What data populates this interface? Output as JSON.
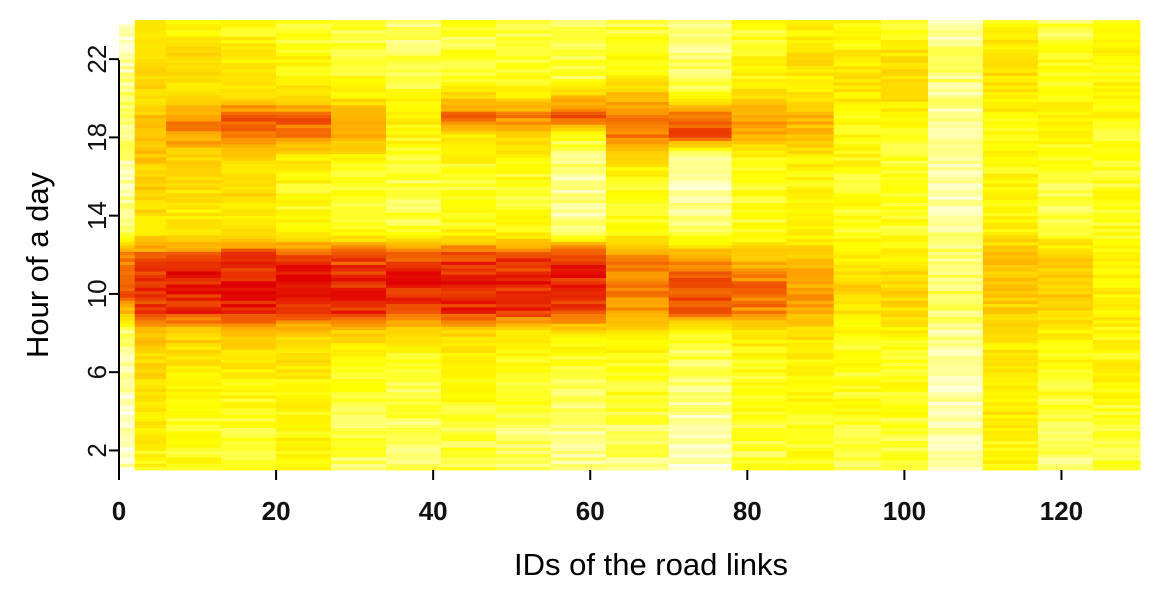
{
  "chart_data": {
    "type": "heatmap",
    "title": "",
    "xlabel": "IDs of the road links",
    "ylabel": "Hour of a day",
    "x_ticks": [
      "0",
      "20",
      "40",
      "60",
      "80",
      "100",
      "120"
    ],
    "y_ticks": [
      "2",
      "6",
      "10",
      "14",
      "18",
      "22"
    ],
    "xlim": [
      0,
      130
    ],
    "ylim": [
      1,
      24
    ],
    "colormap": [
      "#ffffff",
      "#ffff00",
      "#ffaa00",
      "#e00000"
    ],
    "color_scale": "heat (white = low, red = high)",
    "grid": false,
    "legend": "none",
    "link_groups": [
      {
        "x_start": 0,
        "x_end": 2,
        "values": [
          0.1,
          0.05,
          0.1,
          0.05,
          0.1,
          0.1,
          0.15,
          0.2,
          0.6,
          0.85,
          0.8,
          0.7,
          0.2,
          0.15,
          0.15,
          0.1,
          0.15,
          0.2,
          0.2,
          0.2,
          0.15,
          0.1,
          0.1,
          0.05
        ]
      },
      {
        "x_start": 2,
        "x_end": 6,
        "values": [
          0.35,
          0.35,
          0.4,
          0.4,
          0.45,
          0.45,
          0.5,
          0.6,
          0.88,
          0.92,
          0.9,
          0.75,
          0.45,
          0.45,
          0.5,
          0.5,
          0.55,
          0.6,
          0.55,
          0.5,
          0.45,
          0.45,
          0.4,
          0.35
        ]
      },
      {
        "x_start": 6,
        "x_end": 13,
        "values": [
          0.3,
          0.3,
          0.3,
          0.3,
          0.35,
          0.4,
          0.45,
          0.55,
          0.9,
          0.95,
          0.93,
          0.8,
          0.45,
          0.4,
          0.45,
          0.45,
          0.5,
          0.7,
          0.72,
          0.5,
          0.45,
          0.45,
          0.4,
          0.35
        ]
      },
      {
        "x_start": 13,
        "x_end": 20,
        "values": [
          0.3,
          0.3,
          0.3,
          0.3,
          0.35,
          0.4,
          0.45,
          0.55,
          0.92,
          0.96,
          0.95,
          0.85,
          0.45,
          0.4,
          0.45,
          0.45,
          0.5,
          0.82,
          0.85,
          0.5,
          0.4,
          0.4,
          0.35,
          0.3
        ]
      },
      {
        "x_start": 20,
        "x_end": 27,
        "values": [
          0.35,
          0.35,
          0.35,
          0.35,
          0.35,
          0.4,
          0.45,
          0.55,
          0.93,
          0.96,
          0.94,
          0.85,
          0.4,
          0.35,
          0.3,
          0.35,
          0.45,
          0.75,
          0.8,
          0.45,
          0.35,
          0.35,
          0.3,
          0.3
        ]
      },
      {
        "x_start": 27,
        "x_end": 34,
        "values": [
          0.2,
          0.25,
          0.25,
          0.25,
          0.3,
          0.3,
          0.35,
          0.5,
          0.9,
          0.95,
          0.92,
          0.82,
          0.35,
          0.3,
          0.3,
          0.3,
          0.4,
          0.65,
          0.7,
          0.4,
          0.3,
          0.3,
          0.25,
          0.25
        ]
      },
      {
        "x_start": 34,
        "x_end": 41,
        "values": [
          0.2,
          0.2,
          0.2,
          0.25,
          0.25,
          0.3,
          0.35,
          0.45,
          0.9,
          0.94,
          0.92,
          0.82,
          0.3,
          0.25,
          0.25,
          0.25,
          0.3,
          0.35,
          0.4,
          0.3,
          0.25,
          0.25,
          0.2,
          0.2
        ]
      },
      {
        "x_start": 41,
        "x_end": 48,
        "values": [
          0.25,
          0.25,
          0.25,
          0.3,
          0.3,
          0.35,
          0.4,
          0.5,
          0.92,
          0.95,
          0.93,
          0.85,
          0.35,
          0.3,
          0.3,
          0.3,
          0.35,
          0.4,
          0.8,
          0.5,
          0.3,
          0.3,
          0.25,
          0.25
        ]
      },
      {
        "x_start": 48,
        "x_end": 55,
        "values": [
          0.2,
          0.2,
          0.2,
          0.25,
          0.3,
          0.3,
          0.35,
          0.45,
          0.9,
          0.93,
          0.92,
          0.85,
          0.35,
          0.3,
          0.25,
          0.3,
          0.35,
          0.5,
          0.75,
          0.45,
          0.3,
          0.3,
          0.25,
          0.2
        ]
      },
      {
        "x_start": 55,
        "x_end": 62,
        "values": [
          0.15,
          0.15,
          0.15,
          0.2,
          0.2,
          0.25,
          0.3,
          0.45,
          0.9,
          0.95,
          0.93,
          0.88,
          0.2,
          0.15,
          0.15,
          0.15,
          0.2,
          0.3,
          0.9,
          0.55,
          0.25,
          0.25,
          0.2,
          0.2
        ]
      },
      {
        "x_start": 62,
        "x_end": 70,
        "values": [
          0.2,
          0.2,
          0.2,
          0.25,
          0.3,
          0.3,
          0.35,
          0.45,
          0.7,
          0.78,
          0.75,
          0.7,
          0.35,
          0.3,
          0.3,
          0.35,
          0.45,
          0.75,
          0.8,
          0.6,
          0.35,
          0.35,
          0.3,
          0.25
        ]
      },
      {
        "x_start": 70,
        "x_end": 78,
        "values": [
          0.1,
          0.1,
          0.1,
          0.15,
          0.15,
          0.2,
          0.25,
          0.35,
          0.8,
          0.85,
          0.82,
          0.6,
          0.2,
          0.15,
          0.1,
          0.1,
          0.15,
          0.85,
          0.8,
          0.3,
          0.2,
          0.2,
          0.15,
          0.15
        ]
      },
      {
        "x_start": 78,
        "x_end": 85,
        "values": [
          0.25,
          0.25,
          0.25,
          0.3,
          0.3,
          0.3,
          0.35,
          0.45,
          0.72,
          0.78,
          0.75,
          0.5,
          0.3,
          0.3,
          0.3,
          0.3,
          0.35,
          0.65,
          0.7,
          0.45,
          0.35,
          0.35,
          0.3,
          0.3
        ]
      },
      {
        "x_start": 85,
        "x_end": 91,
        "values": [
          0.3,
          0.3,
          0.3,
          0.35,
          0.35,
          0.35,
          0.4,
          0.45,
          0.62,
          0.68,
          0.65,
          0.55,
          0.35,
          0.35,
          0.35,
          0.35,
          0.4,
          0.6,
          0.62,
          0.45,
          0.4,
          0.45,
          0.4,
          0.35
        ]
      },
      {
        "x_start": 91,
        "x_end": 97,
        "values": [
          0.25,
          0.25,
          0.25,
          0.3,
          0.3,
          0.3,
          0.3,
          0.35,
          0.45,
          0.5,
          0.48,
          0.4,
          0.3,
          0.3,
          0.3,
          0.3,
          0.35,
          0.35,
          0.35,
          0.4,
          0.45,
          0.4,
          0.35,
          0.35
        ]
      },
      {
        "x_start": 97,
        "x_end": 103,
        "values": [
          0.25,
          0.25,
          0.25,
          0.3,
          0.3,
          0.3,
          0.3,
          0.35,
          0.45,
          0.5,
          0.48,
          0.4,
          0.3,
          0.3,
          0.3,
          0.3,
          0.3,
          0.3,
          0.35,
          0.45,
          0.5,
          0.45,
          0.35,
          0.3
        ]
      },
      {
        "x_start": 103,
        "x_end": 110,
        "values": [
          0.12,
          0.1,
          0.1,
          0.1,
          0.12,
          0.12,
          0.15,
          0.15,
          0.2,
          0.2,
          0.2,
          0.18,
          0.15,
          0.12,
          0.1,
          0.12,
          0.12,
          0.1,
          0.12,
          0.15,
          0.18,
          0.18,
          0.15,
          0.12
        ]
      },
      {
        "x_start": 110,
        "x_end": 117,
        "values": [
          0.35,
          0.35,
          0.35,
          0.4,
          0.4,
          0.4,
          0.4,
          0.45,
          0.5,
          0.55,
          0.55,
          0.55,
          0.4,
          0.35,
          0.35,
          0.35,
          0.35,
          0.35,
          0.35,
          0.4,
          0.45,
          0.45,
          0.4,
          0.35
        ]
      },
      {
        "x_start": 117,
        "x_end": 124,
        "values": [
          0.2,
          0.2,
          0.2,
          0.25,
          0.3,
          0.3,
          0.35,
          0.4,
          0.5,
          0.55,
          0.55,
          0.5,
          0.3,
          0.25,
          0.25,
          0.25,
          0.3,
          0.35,
          0.4,
          0.35,
          0.3,
          0.3,
          0.25,
          0.25
        ]
      },
      {
        "x_start": 124,
        "x_end": 130,
        "values": [
          0.25,
          0.25,
          0.25,
          0.3,
          0.35,
          0.35,
          0.35,
          0.35,
          0.4,
          0.4,
          0.4,
          0.35,
          0.3,
          0.3,
          0.3,
          0.3,
          0.3,
          0.3,
          0.35,
          0.35,
          0.35,
          0.35,
          0.35,
          0.3
        ]
      }
    ]
  }
}
